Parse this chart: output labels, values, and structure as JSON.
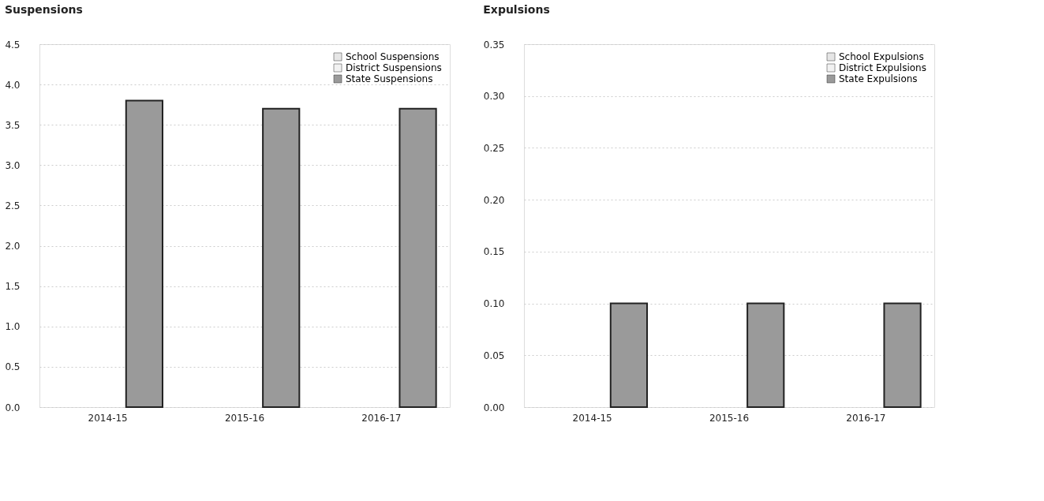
{
  "chart_data": [
    {
      "type": "bar",
      "title": "Suspensions",
      "categories": [
        "2014-15",
        "2015-16",
        "2016-17"
      ],
      "series": [
        {
          "name": "School Suspensions",
          "color": "#e6e6e6",
          "values": [
            null,
            null,
            null
          ]
        },
        {
          "name": "District Suspensions",
          "color": "#f2f2f2",
          "values": [
            null,
            null,
            null
          ]
        },
        {
          "name": "State Suspensions",
          "color": "#9a9a9a",
          "values": [
            3.8,
            3.7,
            3.7
          ]
        }
      ],
      "ylim": [
        0,
        4.5
      ],
      "yticks": [
        {
          "value": 0,
          "label": "0.0"
        },
        0.5,
        {
          "value": 1,
          "label": "1.0"
        },
        1.5,
        {
          "value": 2,
          "label": "2.0"
        },
        2.5,
        {
          "value": 3,
          "label": "3.0"
        },
        3.5,
        {
          "value": 4,
          "label": "4.0"
        },
        4.5
      ],
      "grid": "y",
      "legend": "top right"
    },
    {
      "type": "bar",
      "title": "Expulsions",
      "categories": [
        "2014-15",
        "2015-16",
        "2016-17"
      ],
      "series": [
        {
          "name": "School Expulsions",
          "color": "#e6e6e6",
          "values": [
            null,
            null,
            null
          ]
        },
        {
          "name": "District Expulsions",
          "color": "#f2f2f2",
          "values": [
            null,
            null,
            null
          ]
        },
        {
          "name": "State Expulsions",
          "color": "#9a9a9a",
          "values": [
            0.1,
            0.1,
            0.1
          ]
        }
      ],
      "ylim": [
        0,
        0.35
      ],
      "yticks": [
        {
          "value": 0,
          "label": "0.00"
        },
        0.05,
        {
          "value": 0.1,
          "label": "0.10"
        },
        0.15,
        {
          "value": 0.2,
          "label": "0.20"
        },
        0.25,
        {
          "value": 0.3,
          "label": "0.30"
        },
        0.35
      ],
      "grid": "y",
      "legend": "top right"
    }
  ]
}
